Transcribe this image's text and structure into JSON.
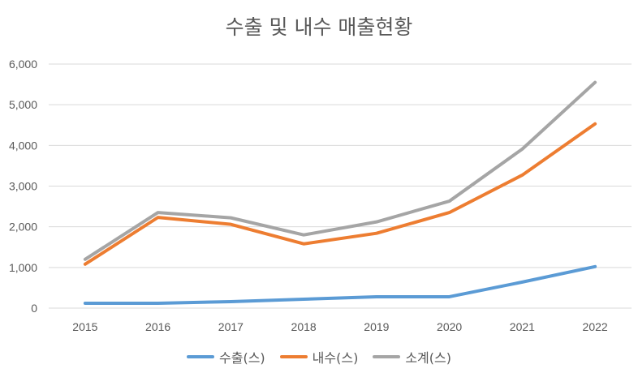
{
  "chart_data": {
    "type": "line",
    "title": "수출 및 내수 매출현황",
    "xlabel": "",
    "ylabel": "",
    "categories": [
      "2015",
      "2016",
      "2017",
      "2018",
      "2019",
      "2020",
      "2021",
      "2022"
    ],
    "ylim": [
      0,
      6000
    ],
    "yticks": [
      "0",
      "1,000",
      "2,000",
      "3,000",
      "4,000",
      "5,000",
      "6,000"
    ],
    "grid": true,
    "legend_position": "bottom",
    "series": [
      {
        "name": "수출(스)",
        "color": "#5b9bd5",
        "values": [
          120,
          120,
          160,
          220,
          280,
          280,
          640,
          1020
        ]
      },
      {
        "name": "내수(스)",
        "color": "#ed7d31",
        "values": [
          1080,
          2230,
          2060,
          1580,
          1840,
          2350,
          3270,
          4530
        ]
      },
      {
        "name": "소계(스)",
        "color": "#a5a5a5",
        "values": [
          1200,
          2350,
          2220,
          1800,
          2120,
          2630,
          3910,
          5550
        ]
      }
    ]
  }
}
